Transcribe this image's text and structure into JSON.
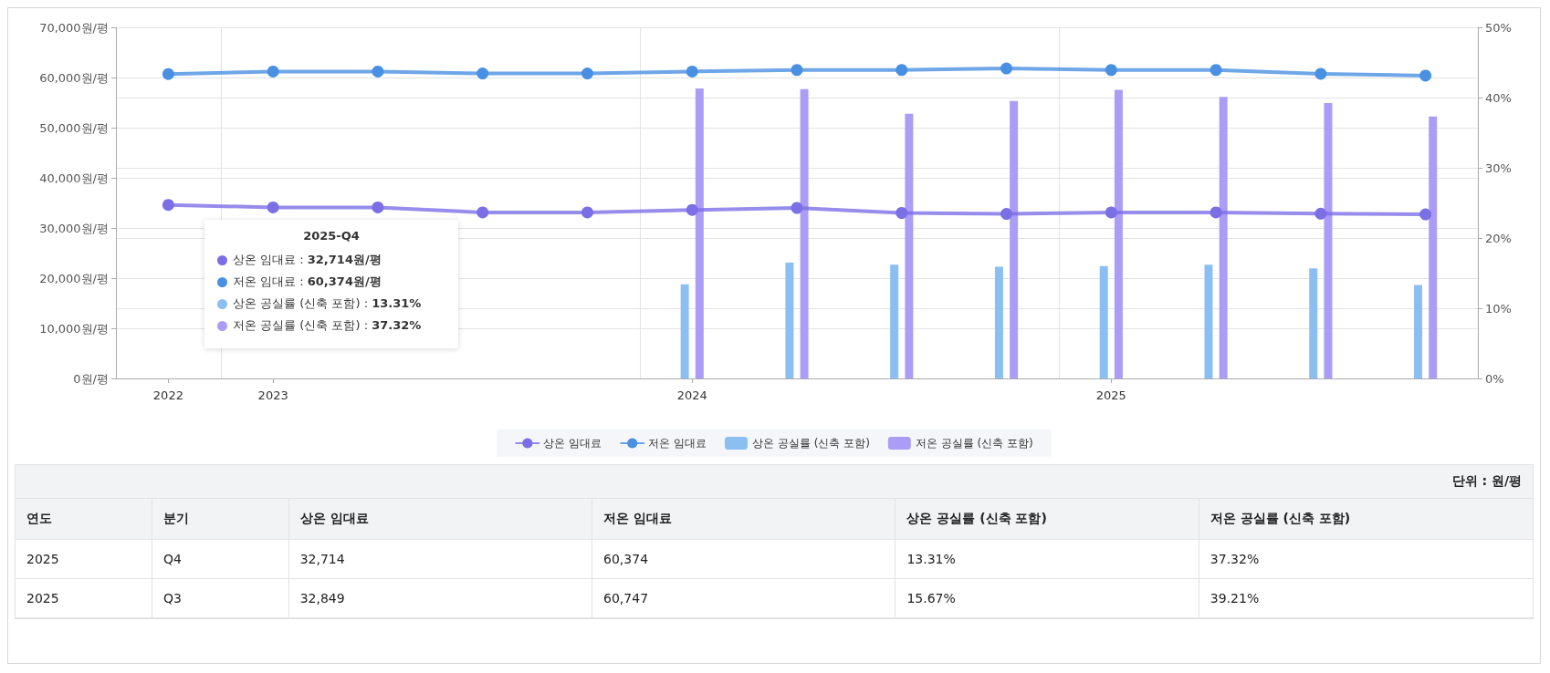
{
  "chart_data": {
    "type": "line",
    "categories": [
      "2022",
      "2023",
      null,
      null,
      null,
      "2024",
      null,
      null,
      null,
      "2025",
      null,
      null,
      null
    ],
    "series": [
      {
        "name": "상온 임대료",
        "color": "#7b6fe6",
        "values": [
          34600,
          34100,
          34100,
          33100,
          33100,
          33600,
          34000,
          33000,
          32800,
          33100,
          33100,
          32849,
          32714
        ]
      },
      {
        "name": "저온 임대료",
        "color": "#4a90e2",
        "values": [
          60700,
          61200,
          61200,
          60800,
          60800,
          61200,
          61500,
          61500,
          61800,
          61500,
          61500,
          60747,
          60374
        ]
      },
      {
        "name": "상온 공실률 (신축 포함)",
        "type": "bar",
        "axis": "y2",
        "color": "#8bbff2",
        "values": [
          null,
          null,
          null,
          null,
          null,
          13.4,
          16.5,
          16.2,
          15.9,
          16.0,
          16.2,
          15.67,
          13.31
        ]
      },
      {
        "name": "저온 공실률 (신축 포함)",
        "type": "bar",
        "axis": "y2",
        "color": "#ab9cf5",
        "values": [
          null,
          null,
          null,
          null,
          null,
          41.3,
          41.2,
          37.7,
          39.5,
          41.1,
          40.1,
          39.21,
          37.32
        ]
      }
    ],
    "ylim": [
      0,
      70000
    ],
    "yticks": [
      {
        "value": 0,
        "label": "0원/평"
      },
      {
        "value": 10000,
        "label": "10,000원/평"
      },
      {
        "value": 20000,
        "label": "20,000원/평"
      },
      {
        "value": 30000,
        "label": "30,000원/평"
      },
      {
        "value": 40000,
        "label": "40,000원/평"
      },
      {
        "value": 50000,
        "label": "50,000원/평"
      },
      {
        "value": 60000,
        "label": "60,000원/평"
      },
      {
        "value": 70000,
        "label": "70,000원/평"
      }
    ],
    "y2lim": [
      0,
      50
    ],
    "y2ticks": [
      {
        "value": 0,
        "label": "0%"
      },
      {
        "value": 10,
        "label": "10%"
      },
      {
        "value": 20,
        "label": "20%"
      },
      {
        "value": 30,
        "label": "30%"
      },
      {
        "value": 40,
        "label": "40%"
      },
      {
        "value": 50,
        "label": "50%"
      }
    ],
    "grid": true,
    "legend": "bottom",
    "marker": "circle",
    "line_style": "solid",
    "annotations": [
      "2025-Q4",
      "상온 임대료 : 32,714원/평",
      "저온 임대료 : 60,374원/평",
      "상온 공실률 (신축 포함) : 13.31%",
      "저온 공실률 (신축 포함) : 37.32%",
      "단위 : 원/평",
      "연도",
      "분기",
      "상온 임대료",
      "저온 임대료",
      "상온 공실률 (신축 포함)",
      "저온 공실률 (신축 포함)",
      "2025",
      "Q4",
      "32,714",
      "60,374",
      "13.31%",
      "37.32%",
      "2025",
      "Q3",
      "32,849",
      "60,747",
      "15.67%",
      "39.21%"
    ]
  }
}
